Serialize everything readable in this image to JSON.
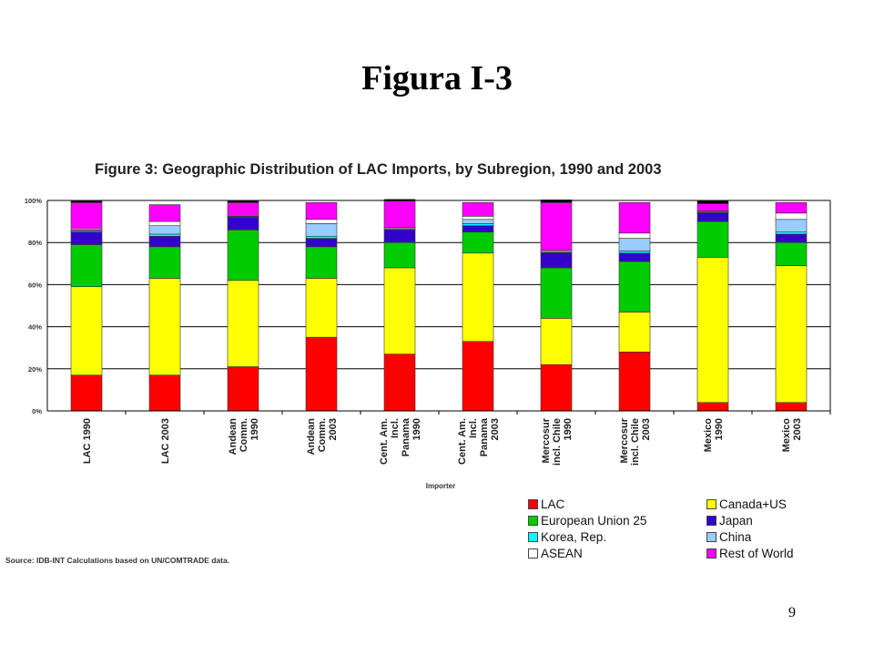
{
  "slide": {
    "title": "Figura I-3",
    "page_number": "9"
  },
  "figure": {
    "title": "Figure 3: Geographic Distribution of LAC Imports, by Subregion, 1990 and 2003",
    "source": "Source: IDB-INT Calculations based on UN/COMTRADE data."
  },
  "chart_data": {
    "type": "bar",
    "stacked": true,
    "percent": true,
    "xlabel": "Importer",
    "ylabel": "",
    "ylim": [
      0,
      100
    ],
    "yticks": [
      "0%",
      "20%",
      "40%",
      "60%",
      "80%",
      "100%"
    ],
    "grid": true,
    "legend_position": "bottom-right",
    "categories": [
      [
        "LAC 1990"
      ],
      [
        "LAC 2003"
      ],
      [
        "Andean",
        "Comm.",
        "1990"
      ],
      [
        "Andean",
        "Comm.",
        "2003"
      ],
      [
        "Cent. Am.",
        "Incl.",
        "Panama",
        "1990"
      ],
      [
        "Cent. Am.",
        "Incl.",
        "Panama",
        "2003"
      ],
      [
        "Mercosur",
        "incl. Chile",
        "1990"
      ],
      [
        "Mercosur",
        "incl. Chile",
        "2003"
      ],
      [
        "Mexico",
        "1990"
      ],
      [
        "Mexico",
        "2003"
      ]
    ],
    "series": [
      {
        "name": "LAC",
        "color": "#ff0000",
        "values": [
          17,
          17,
          21,
          35,
          27,
          33,
          22,
          28,
          4,
          4
        ]
      },
      {
        "name": "Canada+US",
        "color": "#ffff00",
        "values": [
          42,
          46,
          41,
          28,
          41,
          42,
          22,
          19,
          69,
          65
        ]
      },
      {
        "name": "European Union 25",
        "color": "#00cc00",
        "values": [
          20,
          15,
          24,
          15,
          12,
          10,
          24,
          24,
          17,
          11
        ]
      },
      {
        "name": "Japan",
        "color": "#3300cc",
        "values": [
          6,
          5,
          6,
          4,
          6,
          3,
          7,
          4,
          4,
          4
        ]
      },
      {
        "name": "Korea, Rep.",
        "color": "#00ffff",
        "values": [
          0.5,
          1,
          0.3,
          1,
          0.3,
          1,
          0.3,
          1,
          0.3,
          1
        ]
      },
      {
        "name": "China",
        "color": "#99ccff",
        "values": [
          0.5,
          4,
          0.3,
          6,
          0.4,
          2,
          0.5,
          6,
          0.3,
          6
        ]
      },
      {
        "name": "ASEAN",
        "color": "#ffffff",
        "values": [
          0.5,
          2,
          0.4,
          2,
          0.5,
          1.5,
          0.5,
          2.5,
          0.4,
          3
        ]
      },
      {
        "name": "Rest of World",
        "color": "#ff00ff",
        "values": [
          12.5,
          8,
          6,
          8,
          12.5,
          6.5,
          22.7,
          14.5,
          3.5,
          5
        ]
      },
      {
        "name": "",
        "color": "#000000",
        "values": [
          1,
          0,
          1,
          0,
          0.8,
          0,
          1.3,
          0,
          1.5,
          0
        ]
      }
    ],
    "legend": [
      {
        "label": "LAC",
        "color": "#ff0000"
      },
      {
        "label": "Canada+US",
        "color": "#ffff00"
      },
      {
        "label": "European Union 25",
        "color": "#00cc00"
      },
      {
        "label": "Japan",
        "color": "#3300cc"
      },
      {
        "label": "Korea, Rep.",
        "color": "#00ffff"
      },
      {
        "label": "China",
        "color": "#99ccff"
      },
      {
        "label": "ASEAN",
        "color": "#ffffff"
      },
      {
        "label": "Rest of World",
        "color": "#ff00ff"
      }
    ]
  }
}
